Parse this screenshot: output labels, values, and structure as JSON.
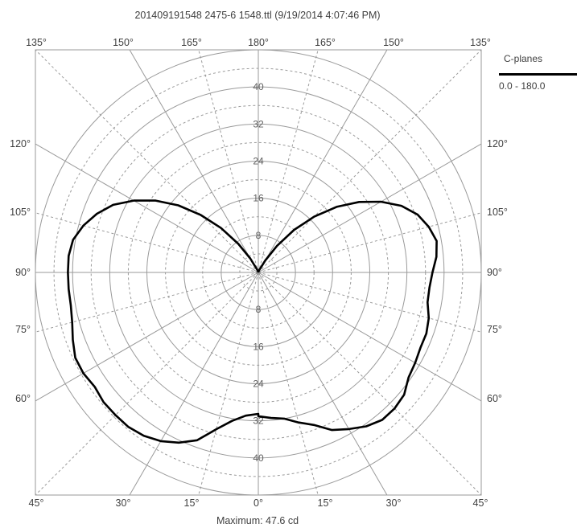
{
  "title": "201409191548 2475-6 1548.ttl (9/19/2014 4:07:46 PM)",
  "footer": "Maximum:  47.6  cd",
  "legend": {
    "title": "C-planes",
    "entries": [
      {
        "label": "0.0 - 180.0",
        "color": "#000000"
      }
    ]
  },
  "chart_data": {
    "type": "polar",
    "title": "201409191548 2475-6 1548.ttl (9/19/2014 4:07:46 PM)",
    "unit": "cd",
    "maximum": 47.6,
    "radial_range": [
      0,
      48
    ],
    "radial_ticks": [
      8,
      16,
      24,
      32,
      40
    ],
    "angle_labels": {
      "top": [
        "135°",
        "150°",
        "165°",
        "180°",
        "165°",
        "150°",
        "135°"
      ],
      "bottom": [
        "45°",
        "30°",
        "15°",
        "0°",
        "15°",
        "30°",
        "45°"
      ],
      "left": [
        "120°",
        "105°",
        "90°",
        "75°",
        "60°"
      ],
      "right": [
        "120°",
        "105°",
        "90°",
        "75°",
        "60°"
      ]
    },
    "grid": true,
    "legend_position": "top-right",
    "series": [
      {
        "name": "0.0 - 180.0",
        "color": "#000000",
        "right_half": {
          "angle": [
            0,
            5,
            10,
            15,
            20,
            25,
            30,
            35,
            40,
            45,
            50,
            55,
            60,
            65,
            70,
            75,
            80,
            85,
            90,
            95,
            100,
            105,
            110,
            115,
            120,
            125,
            130,
            135,
            140,
            145,
            150,
            160,
            170,
            180
          ],
          "value": [
            31.0,
            31.5,
            32.0,
            33.5,
            35.0,
            37.5,
            39.0,
            40.5,
            41.5,
            41.5,
            41.0,
            39.5,
            39.0,
            38.5,
            38.5,
            38.0,
            37.0,
            37.0,
            37.5,
            38.5,
            39.0,
            38.0,
            36.5,
            34.0,
            30.5,
            26.5,
            22.0,
            17.0,
            12.0,
            7.0,
            3.0,
            0.5,
            0.1,
            0.0
          ]
        },
        "left_half": {
          "angle": [
            0,
            5,
            10,
            15,
            20,
            25,
            30,
            35,
            40,
            45,
            50,
            55,
            60,
            65,
            70,
            75,
            80,
            85,
            90,
            95,
            100,
            105,
            110,
            115,
            120,
            125,
            130,
            135,
            140,
            145,
            150,
            160,
            170,
            180
          ],
          "value": [
            30.5,
            31.0,
            32.5,
            35.0,
            38.5,
            40.5,
            42.0,
            43.0,
            43.5,
            43.5,
            43.5,
            43.0,
            43.5,
            43.5,
            42.5,
            41.5,
            41.0,
            41.0,
            41.0,
            41.0,
            40.5,
            39.0,
            37.0,
            34.5,
            31.0,
            27.0,
            22.5,
            17.5,
            12.5,
            7.5,
            3.5,
            0.5,
            0.1,
            0.0
          ]
        }
      }
    ]
  }
}
